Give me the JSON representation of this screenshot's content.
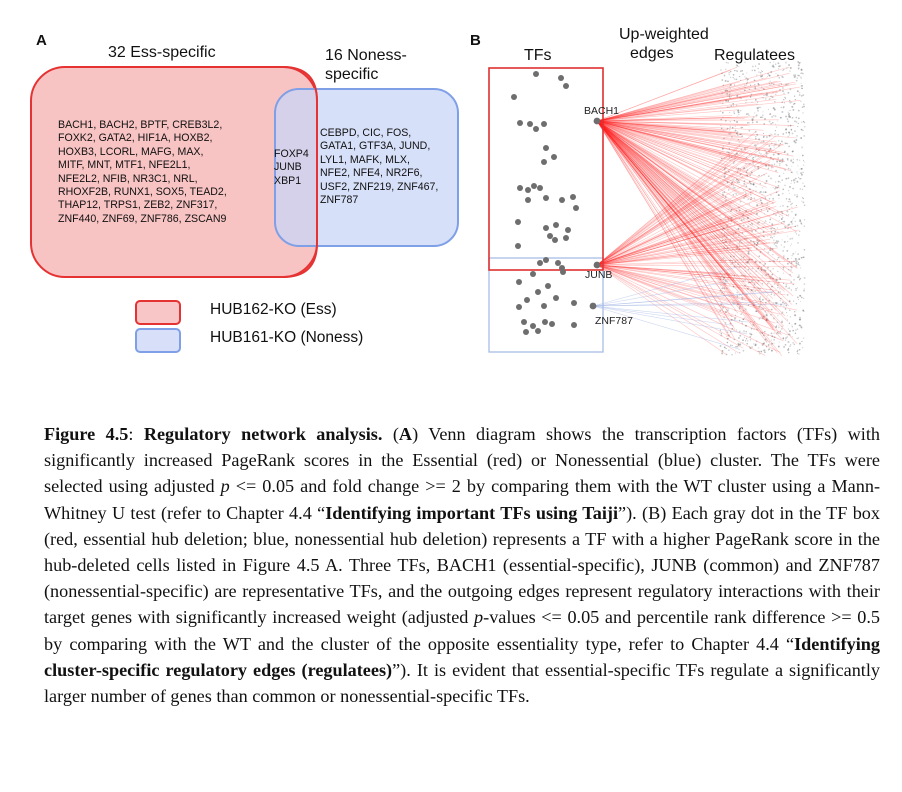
{
  "panel_a": {
    "letter": "A",
    "ess_title": "32 Ess-specific",
    "noness_title_line1": "16 Noness-",
    "noness_title_line2": "specific",
    "ess_genes": [
      "BACH1, BACH2, BPTF, CREB3L2,",
      "FOXK2, GATA2, HIF1A, HOXB2,",
      "HOXB3, LCORL, MAFG, MAX,",
      "MITF, MNT, MTF1, NFE2L1,",
      "NFE2L2, NFIB, NR3C1, NRL,",
      "RHOXF2B, RUNX1, SOX5, TEAD2,",
      "THAP12, TRPS1, ZEB2, ZNF317,",
      "ZNF440, ZNF69, ZNF786, ZSCAN9"
    ],
    "shared_genes": [
      "FOXP4",
      "JUNB",
      "XBP1"
    ],
    "noness_genes": [
      "CEBPD, CIC, FOS,",
      "GATA1, GTF3A, JUND,",
      "LYL1, MAFK, MLX,",
      "NFE2, NFE4, NR2F6,",
      "USF2, ZNF219, ZNF467,",
      "ZNF787"
    ],
    "legend": [
      {
        "label": "HUB162-KO (Ess)",
        "fill": "#f8c6c6",
        "stroke": "#e53232"
      },
      {
        "label": "HUB161-KO (Noness)",
        "fill": "#d7e0f8",
        "stroke": "#7f9fe6"
      }
    ]
  },
  "panel_b": {
    "letter": "B",
    "tfs_label": "TFs",
    "edges_label_line1": "Up-weighted",
    "edges_label_line2": "edges",
    "regulatees_label": "Regulatees",
    "highlighted_tfs": [
      "BACH1",
      "JUNB",
      "ZNF787"
    ],
    "ess_box_color": "#e03030",
    "noness_box_color": "#a8bde8",
    "dot_color": "#6e6e6e",
    "edge_color": "#ff2020"
  },
  "caption": {
    "fig_label": "Figure 4.5",
    "colon": ": ",
    "title": "Regulatory network analysis.",
    "s1": " (",
    "a1": "A",
    "s2": ") Venn diagram shows the transcription factors (TFs) with significantly increased PageRank scores in the Essential (red) or Nonessential (blue) cluster. The TFs were selected using adjusted ",
    "p1": "p",
    "s3": " <= 0.05 and fold change >= 2 by comparing them with the WT cluster using a Mann-Whitney U test (refer to Chapter 4.4 “",
    "bold1": "Identifying important TFs using Taiji",
    "s4": "”). (B) Each gray dot in the TF box (red, essential hub deletion; blue, nonessential hub deletion) represents a TF with a higher PageRank score in the hub-deleted cells listed in Figure 4.5 A. Three TFs, BACH1 (essential-specific), JUNB (common) and ZNF787 (nonessential-specific) are representative TFs, and the outgoing edges represent regulatory interactions with their target genes with significantly increased weight (adjusted ",
    "p2": "p",
    "s5": "-values <= 0.05 and percentile rank difference >= 0.5 by comparing with the WT and the cluster of the opposite essentiality type, refer to Chapter 4.4 “",
    "bold2": "Identifying cluster-specific regulatory edges (regulatees)",
    "s6": "”). It is evident that essential-specific TFs regulate a significantly larger number of genes than common or nonessential-specific TFs."
  }
}
